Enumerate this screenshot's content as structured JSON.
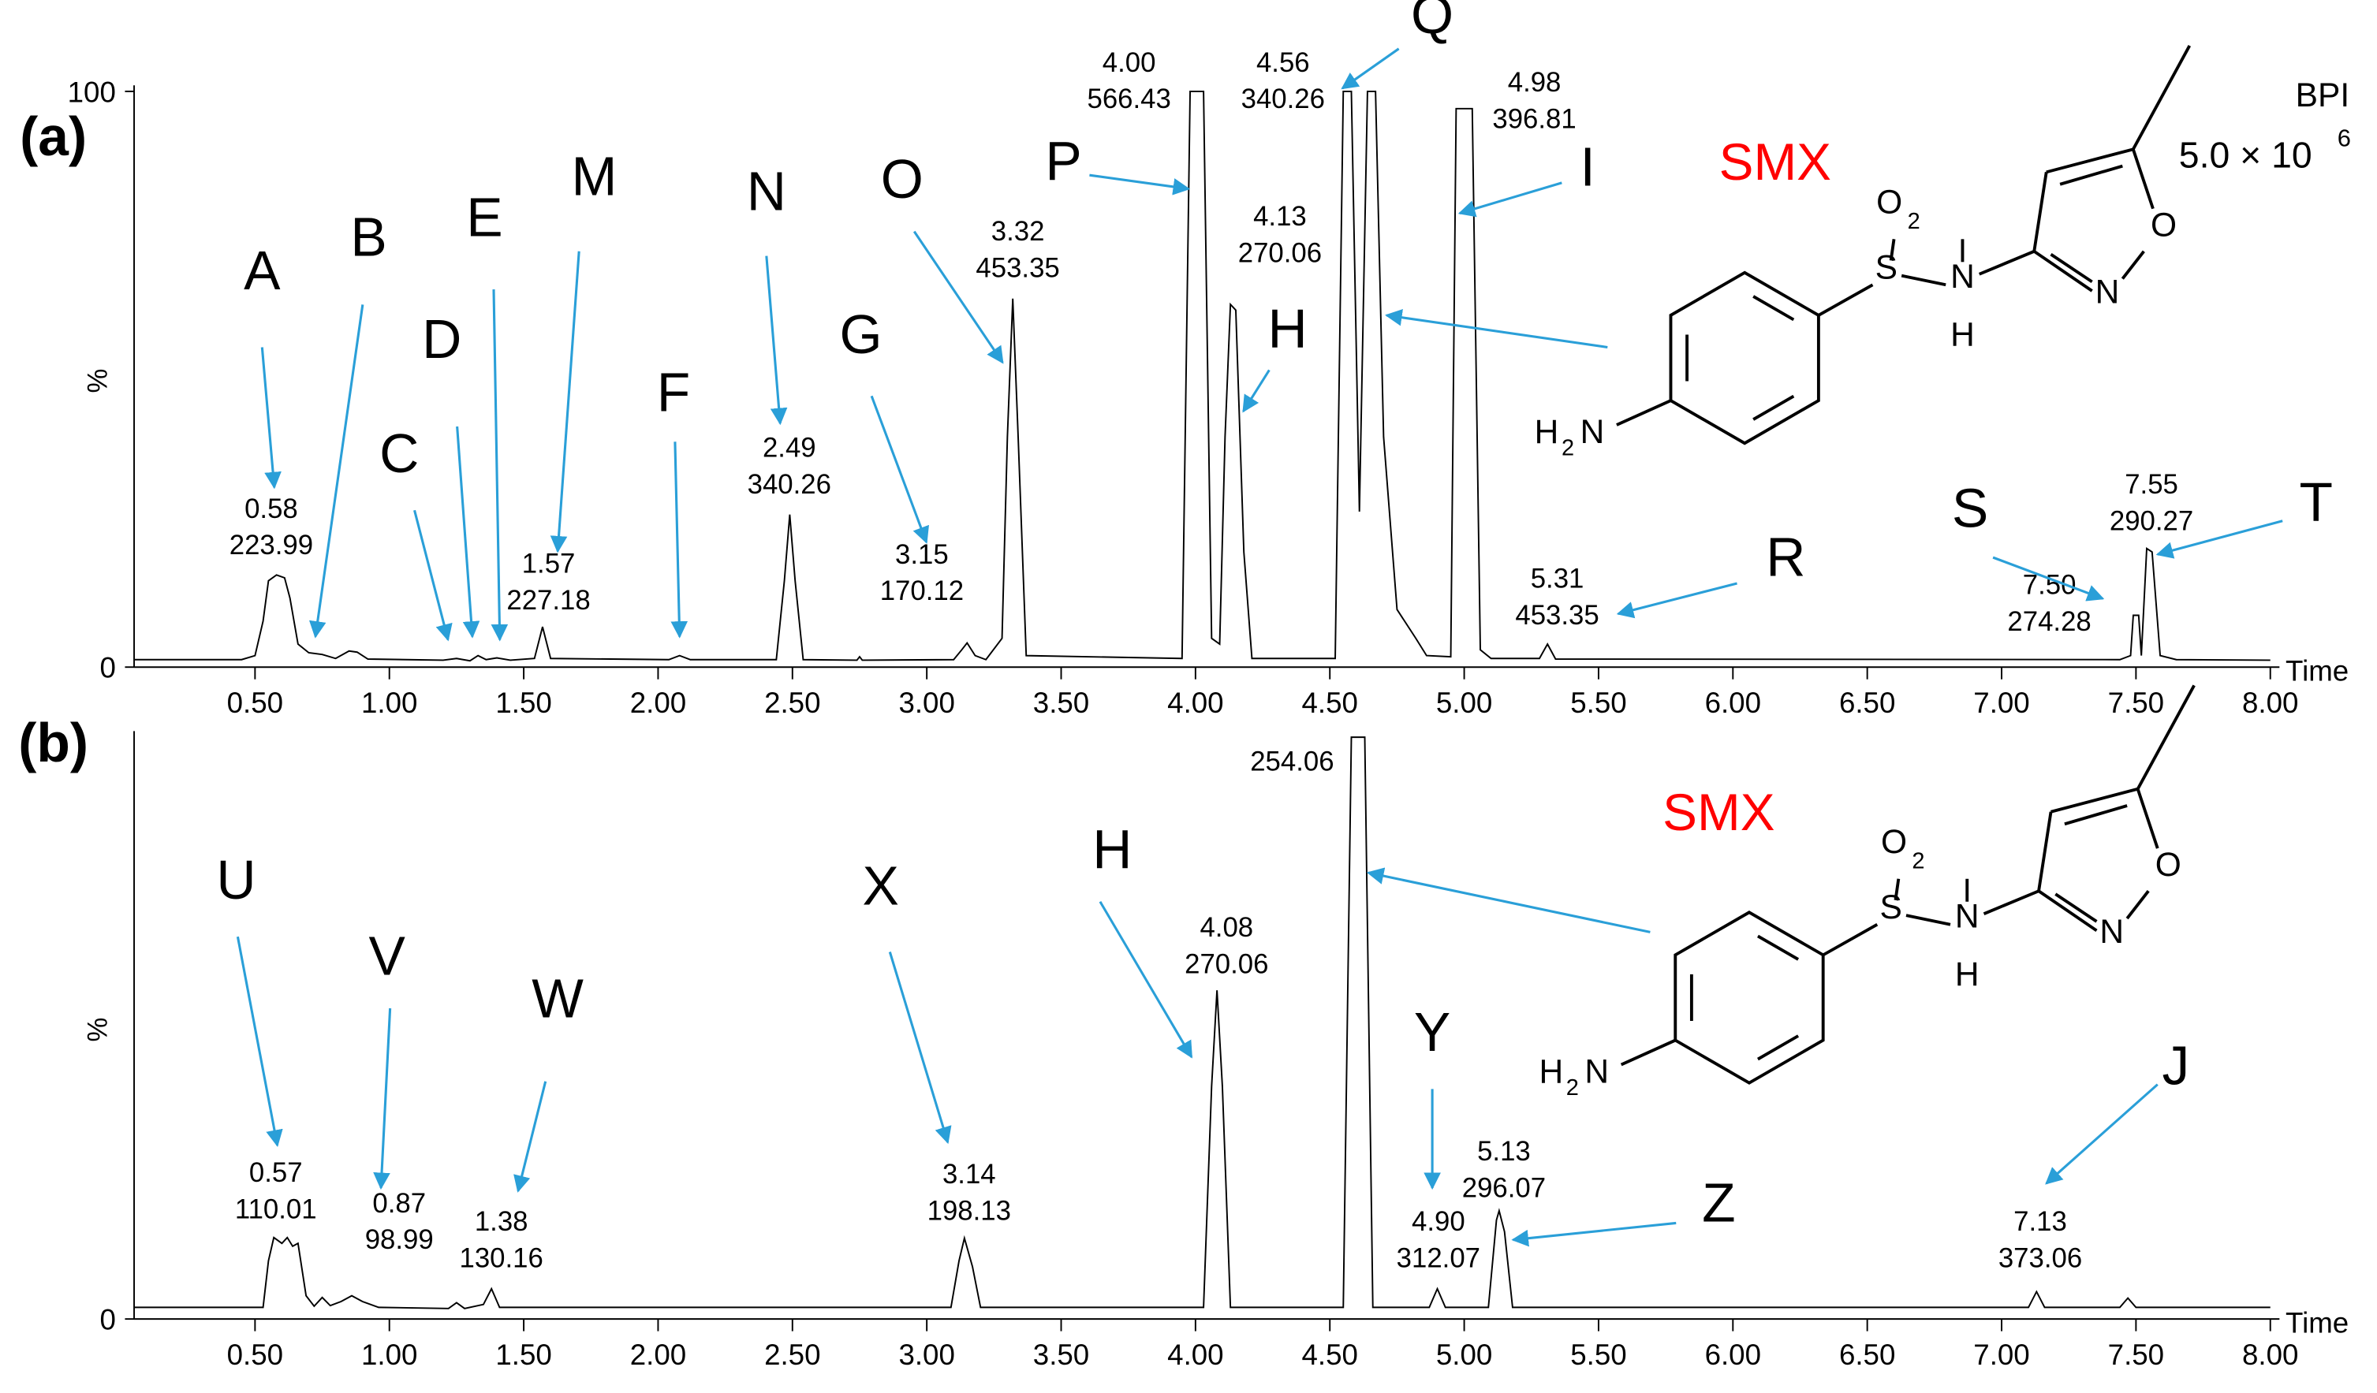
{
  "chart_data": [
    {
      "type": "line",
      "panel": "(a)",
      "x_label": "Time",
      "y_label": "%",
      "trace_label": "BPI",
      "scale": "5.0 × 10",
      "scale_exponent": "6",
      "xlim": [
        0.05,
        8.0
      ],
      "ylim": [
        0,
        100
      ],
      "yticks": [
        0,
        100
      ],
      "xticks": [
        {
          "value": 0.5,
          "label": "0.50"
        },
        {
          "value": 1,
          "label": "1.00"
        },
        {
          "value": 1.5,
          "label": "1.50"
        },
        {
          "value": 2,
          "label": "2.00"
        },
        {
          "value": 2.5,
          "label": "2.50"
        },
        {
          "value": 3,
          "label": "3.00"
        },
        {
          "value": 3.5,
          "label": "3.50"
        },
        {
          "value": 4,
          "label": "4.00"
        },
        {
          "value": 4.5,
          "label": "4.50"
        },
        {
          "value": 5,
          "label": "5.00"
        },
        {
          "value": 5.5,
          "label": "5.50"
        },
        {
          "value": 6,
          "label": "6.00"
        },
        {
          "value": 6.5,
          "label": "6.50"
        },
        {
          "value": 7,
          "label": "7.00"
        },
        {
          "value": 7.5,
          "label": "7.50"
        },
        {
          "value": 8,
          "label": "8.00"
        }
      ],
      "color": "#000000",
      "x": [
        0.05,
        0.45,
        0.5,
        0.53,
        0.55,
        0.58,
        0.61,
        0.63,
        0.66,
        0.7,
        0.75,
        0.8,
        0.85,
        0.88,
        0.92,
        1.2,
        1.25,
        1.3,
        1.33,
        1.36,
        1.4,
        1.45,
        1.54,
        1.57,
        1.6,
        2.04,
        2.08,
        2.12,
        2.44,
        2.47,
        2.49,
        2.51,
        2.54,
        2.74,
        2.75,
        2.76,
        3.1,
        3.13,
        3.15,
        3.18,
        3.22,
        3.28,
        3.3,
        3.32,
        3.34,
        3.37,
        3.95,
        3.98,
        4.03,
        4.06,
        4.09,
        4.11,
        4.13,
        4.15,
        4.18,
        4.21,
        4.52,
        4.55,
        4.58,
        4.61,
        4.64,
        4.67,
        4.7,
        4.75,
        4.82,
        4.86,
        4.95,
        4.97,
        5.03,
        5.06,
        5.1,
        5.28,
        5.31,
        5.34,
        7.44,
        7.48,
        7.49,
        7.51,
        7.52,
        7.54,
        7.56,
        7.59,
        7.65,
        8.0
      ],
      "values": [
        1.3,
        1.3,
        2,
        8,
        15,
        16,
        15.5,
        12,
        4,
        2.5,
        2.2,
        1.5,
        2.8,
        2.6,
        1.4,
        1.2,
        1.5,
        1.1,
        2,
        1.3,
        1.6,
        1.2,
        1.5,
        7,
        1.5,
        1.3,
        2,
        1.3,
        1.3,
        15,
        26.5,
        15,
        1.3,
        1.2,
        1.8,
        1.2,
        1.3,
        3,
        4.2,
        2,
        1.3,
        5,
        40,
        64,
        40,
        2,
        1.5,
        100,
        100,
        5,
        4,
        40,
        63,
        62,
        20,
        1.5,
        1.5,
        100,
        100,
        27,
        100,
        100,
        40,
        10,
        5,
        2,
        1.8,
        97,
        97,
        3,
        1.5,
        1.5,
        4,
        1.4,
        1.3,
        2,
        9,
        9,
        2,
        20.6,
        20,
        2,
        1.3,
        1.2
      ],
      "peak_labels": [
        {
          "time": "0.58",
          "mz": "223.99"
        },
        {
          "time": "1.57",
          "mz": "227.18"
        },
        {
          "time": "2.49",
          "mz": "340.26"
        },
        {
          "time": "3.15",
          "mz": "170.12"
        },
        {
          "time": "3.32",
          "mz": "453.35"
        },
        {
          "time": "4.00",
          "mz": "566.43"
        },
        {
          "time": "4.56",
          "mz": "340.26"
        },
        {
          "time": "4.13",
          "mz": "270.06"
        },
        {
          "time": "4.98",
          "mz": "396.81"
        },
        {
          "time": "5.31",
          "mz": "453.35"
        },
        {
          "time": "7.50",
          "mz": "274.28"
        },
        {
          "time": "7.55",
          "mz": "290.27"
        }
      ],
      "peak_letters": [
        "A",
        "B",
        "C",
        "D",
        "E",
        "M",
        "F",
        "N",
        "O",
        "G",
        "P",
        "Q",
        "H",
        "I",
        "R",
        "S",
        "T"
      ],
      "structure": {
        "name": "SMX",
        "atoms": [
          "S",
          "O",
          "2",
          "N",
          "H",
          "N",
          "O",
          "H",
          "2",
          "N"
        ]
      }
    },
    {
      "type": "line",
      "panel": "(b)",
      "x_label": "Time",
      "y_label": "%",
      "xlim": [
        0.05,
        8.0
      ],
      "ylim": [
        0,
        100
      ],
      "yticks": [
        0
      ],
      "xticks": [
        {
          "value": 0.5,
          "label": "0.50"
        },
        {
          "value": 1,
          "label": "1.00"
        },
        {
          "value": 1.5,
          "label": "1.50"
        },
        {
          "value": 2,
          "label": "2.00"
        },
        {
          "value": 2.5,
          "label": "2.50"
        },
        {
          "value": 3,
          "label": "3.00"
        },
        {
          "value": 3.5,
          "label": "3.50"
        },
        {
          "value": 4,
          "label": "4.00"
        },
        {
          "value": 4.5,
          "label": "4.50"
        },
        {
          "value": 5,
          "label": "5.00"
        },
        {
          "value": 5.5,
          "label": "5.50"
        },
        {
          "value": 6,
          "label": "6.00"
        },
        {
          "value": 6.5,
          "label": "6.50"
        },
        {
          "value": 7,
          "label": "7.00"
        },
        {
          "value": 7.5,
          "label": "7.50"
        },
        {
          "value": 8,
          "label": "8.00"
        }
      ],
      "color": "#000000",
      "x": [
        0.05,
        0.53,
        0.55,
        0.57,
        0.6,
        0.62,
        0.64,
        0.66,
        0.69,
        0.72,
        0.75,
        0.78,
        0.82,
        0.86,
        0.9,
        0.96,
        1.22,
        1.25,
        1.28,
        1.35,
        1.38,
        1.41,
        3.09,
        3.12,
        3.14,
        3.17,
        3.2,
        4.03,
        4.06,
        4.08,
        4.1,
        4.13,
        4.55,
        4.58,
        4.63,
        4.66,
        4.87,
        4.9,
        4.93,
        5.09,
        5.12,
        5.13,
        5.15,
        5.18,
        7.1,
        7.13,
        7.16,
        7.44,
        7.47,
        7.5,
        8.0
      ],
      "values": [
        2,
        2,
        10,
        14,
        13,
        14,
        12.5,
        13,
        4,
        2.2,
        3.7,
        2.3,
        3,
        4,
        3,
        2,
        1.8,
        2.8,
        1.8,
        2.5,
        5.2,
        2,
        2,
        10,
        13.9,
        9,
        2,
        2,
        40,
        56.5,
        40,
        2,
        2,
        100,
        100,
        2,
        2,
        5.2,
        2,
        2,
        17,
        18.6,
        15,
        2,
        2,
        4.7,
        2,
        2,
        3.6,
        2,
        2
      ],
      "peak_labels": [
        {
          "time": "0.57",
          "mz": "110.01"
        },
        {
          "time": "0.87",
          "mz": "98.99"
        },
        {
          "time": "1.38",
          "mz": "130.16"
        },
        {
          "time": "3.14",
          "mz": "198.13"
        },
        {
          "time": "4.08",
          "mz": "270.06"
        },
        {
          "mz": "254.06"
        },
        {
          "time": "4.90",
          "mz": "312.07"
        },
        {
          "time": "5.13",
          "mz": "296.07"
        },
        {
          "time": "7.13",
          "mz": "373.06"
        }
      ],
      "peak_letters": [
        "U",
        "V",
        "W",
        "X",
        "H",
        "Y",
        "Z",
        "J"
      ],
      "structure": {
        "name": "SMX",
        "atoms": [
          "S",
          "O",
          "2",
          "N",
          "H",
          "N",
          "O",
          "H",
          "2",
          "N"
        ]
      }
    }
  ]
}
